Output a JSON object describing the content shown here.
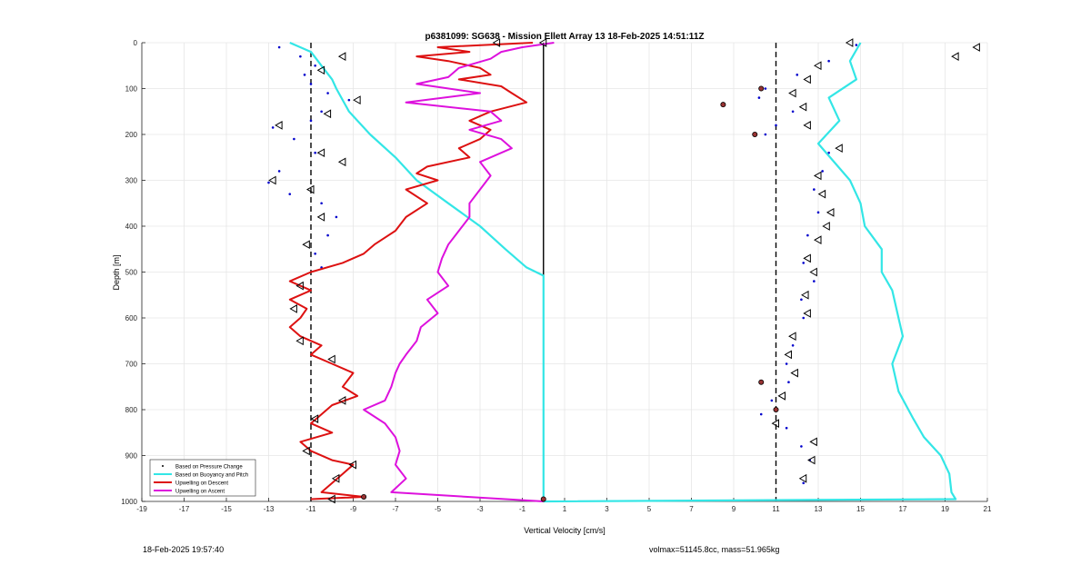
{
  "chart_data": {
    "type": "line",
    "title": "p6381099: SG638 - Mission Ellett Array 13 18-Feb-2025 14:51:11Z",
    "xlabel": "Vertical Velocity [cm/s]",
    "ylabel": "Depth [m]",
    "xlim": [
      -19,
      21
    ],
    "ylim": [
      1000,
      0
    ],
    "y_reversed": true,
    "grid": true,
    "x_ticks": [
      -19,
      -17,
      -15,
      -13,
      -11,
      -9,
      -7,
      -5,
      -3,
      -1,
      1,
      3,
      5,
      7,
      9,
      11,
      13,
      15,
      17,
      19,
      21
    ],
    "y_ticks": [
      0,
      100,
      200,
      300,
      400,
      500,
      600,
      700,
      800,
      900,
      1000
    ],
    "x_tick_labels": [
      "-19",
      "-17",
      "-15",
      "-13",
      "-11",
      "-9",
      "-7",
      "-5",
      "-3",
      "-1",
      "1",
      "3",
      "5",
      "7",
      "9",
      "11",
      "13",
      "15",
      "17",
      "19",
      "21"
    ],
    "y_tick_labels": [
      "0",
      "100",
      "200",
      "300",
      "400",
      "500",
      "600",
      "700",
      "800",
      "900",
      "1000"
    ],
    "legend_position": "bottom-left",
    "reference_lines": [
      {
        "x": -11,
        "style": "dashed",
        "color": "#000000"
      },
      {
        "x": 11,
        "style": "dashed",
        "color": "#000000"
      },
      {
        "x": 0,
        "style": "solid",
        "color": "#000000"
      }
    ],
    "series": [
      {
        "name": "Based on Pressure Change",
        "kind": "points",
        "color": "#0000cc",
        "descent": [
          [
            -12.5,
            10
          ],
          [
            -11.5,
            30
          ],
          [
            -10.8,
            50
          ],
          [
            -11.3,
            70
          ],
          [
            -11.0,
            90
          ],
          [
            -10.2,
            110
          ],
          [
            -9.2,
            125
          ],
          [
            -10.5,
            150
          ],
          [
            -11.0,
            170
          ],
          [
            -12.8,
            185
          ],
          [
            -11.8,
            210
          ],
          [
            -10.8,
            240
          ],
          [
            -12.5,
            280
          ],
          [
            -13.0,
            305
          ],
          [
            -12.0,
            330
          ],
          [
            -10.5,
            350
          ],
          [
            -9.8,
            380
          ],
          [
            -10.2,
            420
          ],
          [
            -10.8,
            460
          ],
          [
            -10.5,
            490
          ]
        ],
        "ascent": [
          [
            14.8,
            5
          ],
          [
            13.5,
            40
          ],
          [
            12.0,
            70
          ],
          [
            10.5,
            100
          ],
          [
            10.2,
            120
          ],
          [
            11.8,
            150
          ],
          [
            11.0,
            180
          ],
          [
            10.5,
            200
          ],
          [
            13.5,
            240
          ],
          [
            13.2,
            280
          ],
          [
            12.8,
            320
          ],
          [
            13.0,
            370
          ],
          [
            12.5,
            420
          ],
          [
            12.3,
            480
          ],
          [
            12.8,
            520
          ],
          [
            12.2,
            560
          ],
          [
            12.3,
            600
          ],
          [
            11.8,
            660
          ],
          [
            11.5,
            700
          ],
          [
            11.6,
            740
          ],
          [
            10.8,
            780
          ],
          [
            10.3,
            810
          ],
          [
            11.5,
            840
          ],
          [
            12.2,
            880
          ],
          [
            12.6,
            910
          ],
          [
            12.3,
            960
          ]
        ]
      },
      {
        "name": "Based on Buoyancy and Pitch",
        "kind": "line",
        "color": "#33e6e6",
        "descent": [
          [
            -12,
            0
          ],
          [
            -11,
            20
          ],
          [
            -10.5,
            50
          ],
          [
            -10.0,
            80
          ],
          [
            -9.8,
            100
          ],
          [
            -9.2,
            150
          ],
          [
            -8.2,
            200
          ],
          [
            -7.0,
            250
          ],
          [
            -6.0,
            300
          ],
          [
            -4.5,
            350
          ],
          [
            -3.0,
            400
          ],
          [
            -1.8,
            450
          ],
          [
            -0.8,
            490
          ],
          [
            0,
            508
          ],
          [
            0,
            1000
          ]
        ],
        "ascent": [
          [
            15.0,
            0
          ],
          [
            14.5,
            40
          ],
          [
            14.8,
            80
          ],
          [
            13.5,
            120
          ],
          [
            14.0,
            170
          ],
          [
            13.0,
            220
          ],
          [
            14.5,
            300
          ],
          [
            15.0,
            350
          ],
          [
            15.2,
            400
          ],
          [
            16.0,
            450
          ],
          [
            16.0,
            500
          ],
          [
            16.5,
            540
          ],
          [
            16.8,
            600
          ],
          [
            17.0,
            640
          ],
          [
            16.5,
            700
          ],
          [
            16.8,
            760
          ],
          [
            17.5,
            820
          ],
          [
            18.0,
            860
          ],
          [
            18.8,
            900
          ],
          [
            19.2,
            940
          ],
          [
            19.3,
            980
          ],
          [
            19.5,
            995
          ],
          [
            0,
            1000
          ]
        ]
      },
      {
        "name": "Upwelling on Descent",
        "kind": "line",
        "color": "#dd1111",
        "points": [
          [
            -0.5,
            0
          ],
          [
            -5.0,
            10
          ],
          [
            -3.5,
            20
          ],
          [
            -6.0,
            30
          ],
          [
            -4.5,
            40
          ],
          [
            -3.0,
            55
          ],
          [
            -2.5,
            70
          ],
          [
            -4.0,
            80
          ],
          [
            -2.0,
            95
          ],
          [
            -1.5,
            110
          ],
          [
            -0.8,
            130
          ],
          [
            -2.5,
            150
          ],
          [
            -3.5,
            170
          ],
          [
            -2.5,
            190
          ],
          [
            -3.0,
            210
          ],
          [
            -4.0,
            230
          ],
          [
            -3.5,
            250
          ],
          [
            -5.5,
            270
          ],
          [
            -6.0,
            285
          ],
          [
            -5.0,
            300
          ],
          [
            -6.5,
            320
          ],
          [
            -5.5,
            350
          ],
          [
            -6.5,
            380
          ],
          [
            -7.0,
            410
          ],
          [
            -8.0,
            440
          ],
          [
            -8.5,
            460
          ],
          [
            -9.5,
            480
          ],
          [
            -11.0,
            500
          ],
          [
            -12.0,
            520
          ],
          [
            -11.0,
            540
          ],
          [
            -12.0,
            560
          ],
          [
            -11.2,
            580
          ],
          [
            -11.5,
            600
          ],
          [
            -12.0,
            620
          ],
          [
            -11.5,
            640
          ],
          [
            -10.5,
            660
          ],
          [
            -11.0,
            680
          ],
          [
            -10.0,
            700
          ],
          [
            -9.0,
            720
          ],
          [
            -9.5,
            750
          ],
          [
            -8.8,
            770
          ],
          [
            -10.0,
            790
          ],
          [
            -10.5,
            810
          ],
          [
            -11.0,
            830
          ],
          [
            -10.0,
            850
          ],
          [
            -11.5,
            870
          ],
          [
            -11.0,
            890
          ],
          [
            -10.0,
            910
          ],
          [
            -9.0,
            920
          ],
          [
            -9.5,
            940
          ],
          [
            -10.0,
            960
          ],
          [
            -10.5,
            980
          ],
          [
            -8.5,
            990
          ],
          [
            -11.0,
            995
          ]
        ]
      },
      {
        "name": "Upwelling on Ascent",
        "kind": "line",
        "color": "#dd11dd",
        "points": [
          [
            0.5,
            0
          ],
          [
            -1.0,
            10
          ],
          [
            -2.0,
            20
          ],
          [
            -2.5,
            35
          ],
          [
            -4.0,
            55
          ],
          [
            -4.5,
            75
          ],
          [
            -6.0,
            90
          ],
          [
            -3.0,
            110
          ],
          [
            -6.5,
            130
          ],
          [
            -2.5,
            150
          ],
          [
            -2.0,
            170
          ],
          [
            -3.5,
            190
          ],
          [
            -2.0,
            210
          ],
          [
            -1.5,
            230
          ],
          [
            -3.0,
            260
          ],
          [
            -2.5,
            290
          ],
          [
            -3.0,
            320
          ],
          [
            -3.5,
            350
          ],
          [
            -3.5,
            380
          ],
          [
            -4.0,
            410
          ],
          [
            -4.5,
            440
          ],
          [
            -4.8,
            470
          ],
          [
            -5.0,
            500
          ],
          [
            -4.5,
            530
          ],
          [
            -5.5,
            560
          ],
          [
            -5.0,
            590
          ],
          [
            -5.8,
            620
          ],
          [
            -6.0,
            650
          ],
          [
            -6.5,
            680
          ],
          [
            -6.8,
            700
          ],
          [
            -7.0,
            720
          ],
          [
            -7.2,
            750
          ],
          [
            -7.5,
            780
          ],
          [
            -8.5,
            800
          ],
          [
            -7.5,
            830
          ],
          [
            -7.0,
            860
          ],
          [
            -6.8,
            890
          ],
          [
            -7.0,
            920
          ],
          [
            -6.5,
            950
          ],
          [
            -7.2,
            980
          ],
          [
            0,
            1000
          ]
        ]
      }
    ],
    "markers": {
      "open_triangles": [
        [
          -2.2,
          0
        ],
        [
          -9.5,
          30
        ],
        [
          -10.5,
          60
        ],
        [
          -8.8,
          125
        ],
        [
          -10.2,
          155
        ],
        [
          -12.5,
          180
        ],
        [
          -10.5,
          240
        ],
        [
          -9.5,
          260
        ],
        [
          -12.8,
          300
        ],
        [
          -11.0,
          320
        ],
        [
          -10.5,
          380
        ],
        [
          -11.2,
          440
        ],
        [
          -11.5,
          530
        ],
        [
          -11.8,
          580
        ],
        [
          -11.5,
          650
        ],
        [
          -10.0,
          690
        ],
        [
          -9.5,
          780
        ],
        [
          -10.8,
          820
        ],
        [
          -11.2,
          890
        ],
        [
          -9.0,
          920
        ],
        [
          -9.8,
          950
        ],
        [
          -10.0,
          995
        ],
        [
          0,
          0
        ],
        [
          14.5,
          0
        ],
        [
          20.5,
          10
        ],
        [
          19.5,
          30
        ],
        [
          13.0,
          50
        ],
        [
          12.5,
          80
        ],
        [
          11.8,
          110
        ],
        [
          12.3,
          140
        ],
        [
          12.5,
          180
        ],
        [
          14.0,
          230
        ],
        [
          13.0,
          290
        ],
        [
          13.2,
          330
        ],
        [
          13.6,
          370
        ],
        [
          13.4,
          400
        ],
        [
          13.0,
          430
        ],
        [
          12.5,
          470
        ],
        [
          12.8,
          500
        ],
        [
          12.4,
          550
        ],
        [
          12.5,
          590
        ],
        [
          11.8,
          640
        ],
        [
          11.6,
          680
        ],
        [
          11.9,
          720
        ],
        [
          11.3,
          770
        ],
        [
          11.0,
          830
        ],
        [
          12.8,
          870
        ],
        [
          12.7,
          910
        ],
        [
          12.3,
          950
        ]
      ],
      "filled_circles": [
        [
          -8.5,
          990
        ],
        [
          0,
          995
        ],
        [
          10.3,
          100
        ],
        [
          8.5,
          135
        ],
        [
          10.0,
          200
        ],
        [
          10.3,
          740
        ],
        [
          11.0,
          800
        ]
      ]
    }
  },
  "legend": {
    "items": [
      {
        "label": "Based on Pressure Change",
        "color": "#000000",
        "kind": "dot"
      },
      {
        "label": "Based on Buoyancy and Pitch",
        "color": "#33e6e6",
        "kind": "line"
      },
      {
        "label": "Upwelling on Descent",
        "color": "#dd1111",
        "kind": "line"
      },
      {
        "label": "Upwelling on Ascent",
        "color": "#dd11dd",
        "kind": "line"
      }
    ]
  },
  "footer": {
    "left": "18-Feb-2025 19:57:40",
    "right": "volmax=51145.8cc, mass=51.965kg"
  }
}
